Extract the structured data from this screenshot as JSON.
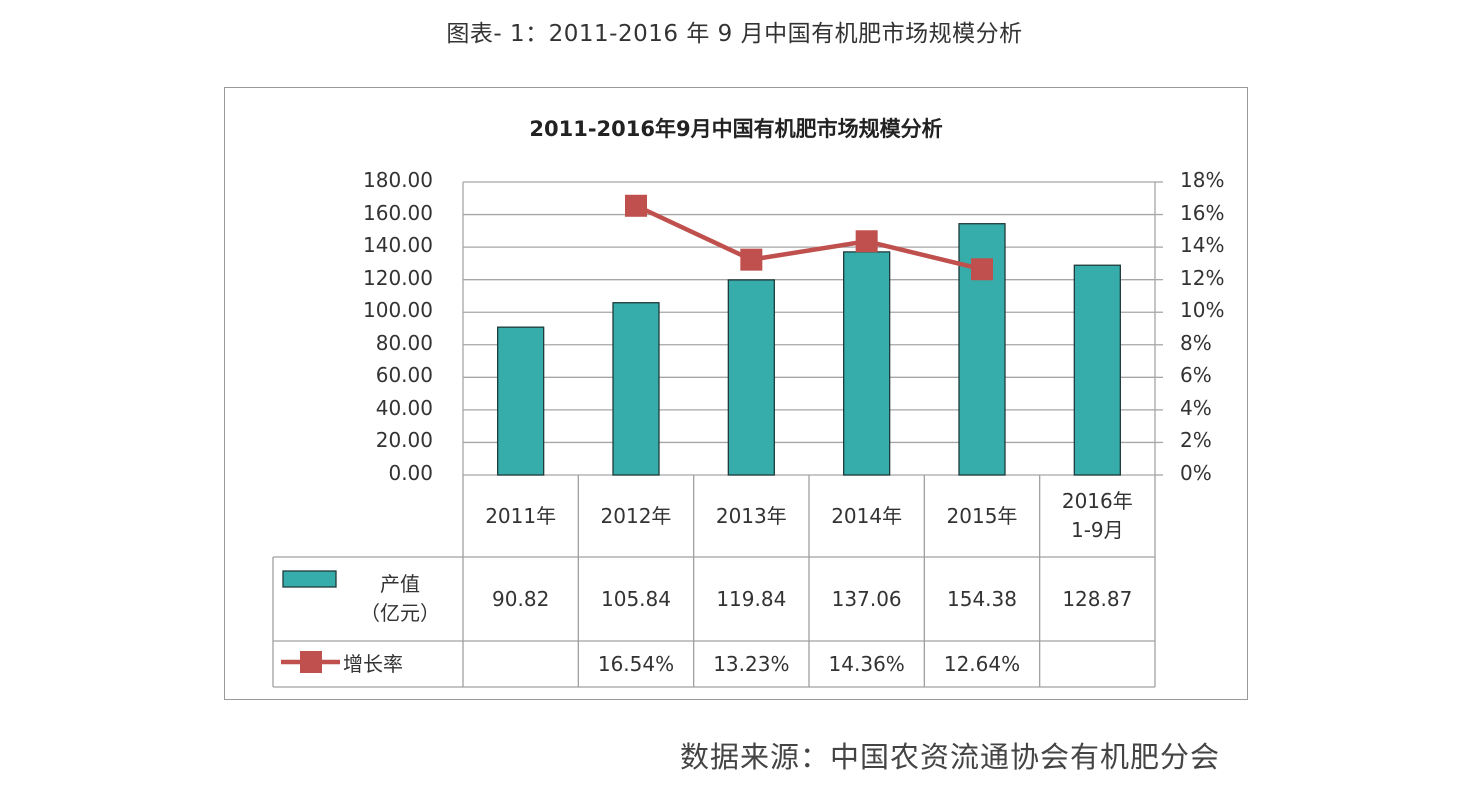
{
  "caption": "图表- 1：2011-2016 年 9 月中国有机肥市场规模分析",
  "source": "数据来源：中国农资流通协会有机肥分会",
  "colors": {
    "bar": "#36ADAA",
    "bar_border": "#1f3b3a",
    "line": "#C0504D",
    "grid": "#a6a6a6"
  },
  "table": {
    "header": [
      "2011年",
      "2012年",
      "2013年",
      "2014年",
      "2015年",
      "2016年\n1-9月"
    ],
    "rows": [
      {
        "legend": "产值\n（亿元）",
        "legend_l1": "产值",
        "legend_l2": "（亿元）",
        "cells": [
          "90.82",
          "105.84",
          "119.84",
          "137.06",
          "154.38",
          "128.87"
        ]
      },
      {
        "legend": "增长率",
        "cells": [
          "",
          "16.54%",
          "13.23%",
          "14.36%",
          "12.64%",
          ""
        ]
      }
    ]
  },
  "chart_data": {
    "type": "bar",
    "title": "2011-2016年9月中国有机肥市场规模分析",
    "categories": [
      "2011年",
      "2012年",
      "2013年",
      "2014年",
      "2015年",
      "2016年1-9月"
    ],
    "series": [
      {
        "name": "产值（亿元）",
        "type": "bar",
        "axis": "left",
        "values": [
          90.82,
          105.84,
          119.84,
          137.06,
          154.38,
          128.87
        ]
      },
      {
        "name": "增长率",
        "type": "line",
        "axis": "right",
        "unit": "%",
        "values": [
          null,
          16.54,
          13.23,
          14.36,
          12.64,
          null
        ]
      }
    ],
    "ylabel": "",
    "xlabel": "",
    "ylim": [
      0,
      180
    ],
    "y_ticks": [
      "0.00",
      "20.00",
      "40.00",
      "60.00",
      "80.00",
      "100.00",
      "120.00",
      "140.00",
      "160.00",
      "180.00"
    ],
    "y2lim": [
      0,
      18
    ],
    "y2_ticks": [
      "0%",
      "2%",
      "4%",
      "6%",
      "8%",
      "10%",
      "12%",
      "14%",
      "16%",
      "18%"
    ],
    "grid": true,
    "legend_position": "data-table-left"
  }
}
